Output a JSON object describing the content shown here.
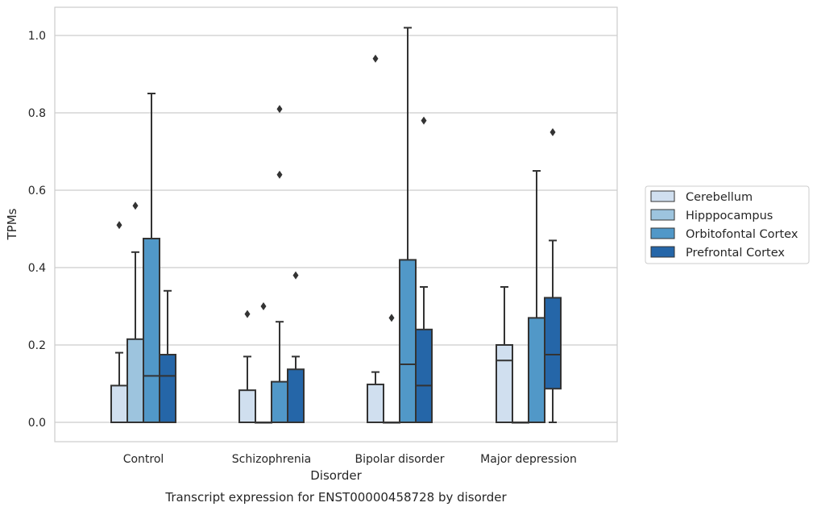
{
  "chart_data": {
    "type": "box",
    "caption": "Transcript expression for ENST00000458728 by disorder",
    "xlabel": "Disorder",
    "ylabel": "TPMs",
    "ylim": [
      -0.05,
      1.07
    ],
    "yticks": [
      0.0,
      0.2,
      0.4,
      0.6,
      0.8,
      1.0
    ],
    "ytick_labels": [
      "0.0",
      "0.2",
      "0.4",
      "0.6",
      "0.8",
      "1.0"
    ],
    "grid": "horizontal",
    "legend_position": "right",
    "categories": [
      "Control",
      "Schizophrenia",
      "Bipolar disorder",
      "Major depression"
    ],
    "series": [
      {
        "name": "Cerebellum",
        "color": "#d0dfef",
        "boxes": [
          {
            "whislo": 0.0,
            "q1": 0.0,
            "med": 0.0,
            "q3": 0.095,
            "whishi": 0.18,
            "fliers": [
              0.51
            ]
          },
          {
            "whislo": 0.0,
            "q1": 0.0,
            "med": 0.0,
            "q3": 0.083,
            "whishi": 0.17,
            "fliers": [
              0.28
            ]
          },
          {
            "whislo": 0.0,
            "q1": 0.0,
            "med": 0.0,
            "q3": 0.098,
            "whishi": 0.13,
            "fliers": [
              0.94
            ]
          },
          {
            "whislo": 0.0,
            "q1": 0.0,
            "med": 0.16,
            "q3": 0.2,
            "whishi": 0.35,
            "fliers": []
          }
        ]
      },
      {
        "name": "Hipppocampus",
        "color": "#9dc4de",
        "boxes": [
          {
            "whislo": 0.0,
            "q1": 0.0,
            "med": 0.0,
            "q3": 0.215,
            "whishi": 0.44,
            "fliers": [
              0.56
            ]
          },
          {
            "whislo": 0.0,
            "q1": 0.0,
            "med": 0.0,
            "q3": 0.0,
            "whishi": 0.0,
            "fliers": [
              0.3
            ]
          },
          {
            "whislo": 0.0,
            "q1": 0.0,
            "med": 0.0,
            "q3": 0.0,
            "whishi": 0.0,
            "fliers": [
              0.27
            ]
          },
          {
            "whislo": 0.0,
            "q1": 0.0,
            "med": 0.0,
            "q3": 0.0,
            "whishi": 0.0,
            "fliers": []
          }
        ]
      },
      {
        "name": "Orbitofontal Cortex",
        "color": "#5198c8",
        "boxes": [
          {
            "whislo": 0.0,
            "q1": 0.0,
            "med": 0.12,
            "q3": 0.475,
            "whishi": 0.85,
            "fliers": []
          },
          {
            "whislo": 0.0,
            "q1": 0.0,
            "med": 0.0,
            "q3": 0.105,
            "whishi": 0.26,
            "fliers": [
              0.81,
              0.64
            ]
          },
          {
            "whislo": 0.0,
            "q1": 0.0,
            "med": 0.15,
            "q3": 0.42,
            "whishi": 1.02,
            "fliers": []
          },
          {
            "whislo": 0.0,
            "q1": 0.0,
            "med": 0.0,
            "q3": 0.27,
            "whishi": 0.65,
            "fliers": []
          }
        ]
      },
      {
        "name": "Prefrontal Cortex",
        "color": "#2566a8",
        "boxes": [
          {
            "whislo": 0.0,
            "q1": 0.0,
            "med": 0.12,
            "q3": 0.175,
            "whishi": 0.34,
            "fliers": []
          },
          {
            "whislo": 0.0,
            "q1": 0.0,
            "med": 0.0,
            "q3": 0.137,
            "whishi": 0.17,
            "fliers": [
              0.38
            ]
          },
          {
            "whislo": 0.0,
            "q1": 0.0,
            "med": 0.095,
            "q3": 0.24,
            "whishi": 0.35,
            "fliers": [
              0.78
            ]
          },
          {
            "whislo": 0.0,
            "q1": 0.087,
            "med": 0.175,
            "q3": 0.322,
            "whishi": 0.47,
            "fliers": [
              0.75
            ]
          }
        ]
      }
    ]
  }
}
